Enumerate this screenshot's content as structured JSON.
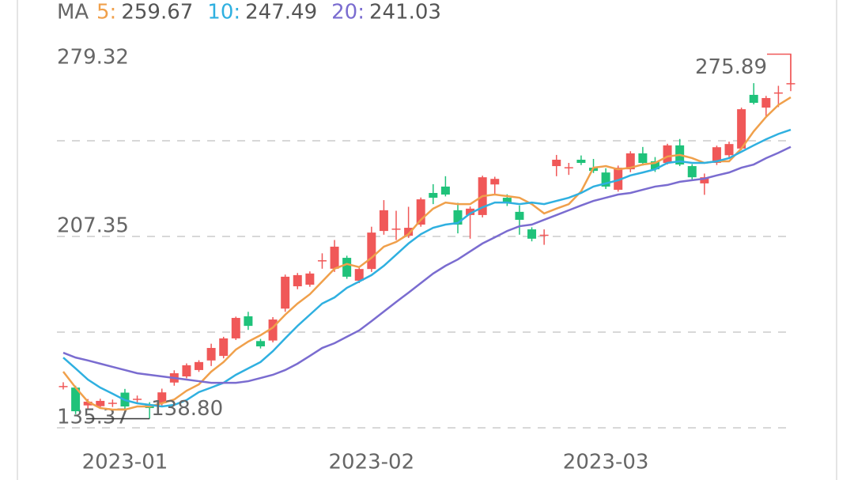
{
  "chart_data": {
    "type": "candlestick",
    "ma_label": "MA",
    "categories": [
      null,
      null,
      null,
      null,
      null,
      "2023-01",
      null,
      null,
      null,
      null,
      null,
      null,
      null,
      null,
      null,
      null,
      null,
      null,
      null,
      null,
      null,
      null,
      null,
      null,
      null,
      "2023-02",
      null,
      null,
      null,
      null,
      null,
      null,
      null,
      null,
      null,
      null,
      null,
      null,
      null,
      null,
      null,
      null,
      null,
      null,
      "2023-03",
      null,
      null,
      null,
      null,
      null,
      null,
      null,
      null,
      null,
      null,
      null,
      null,
      null,
      null,
      null
    ],
    "open": [
      150.8,
      150.5,
      143.8,
      143.5,
      144.5,
      148.6,
      146,
      144.2,
      144.6,
      152.4,
      154.7,
      157.1,
      160.7,
      162.4,
      169,
      177.3,
      168,
      168.2,
      180.2,
      188.6,
      189.2,
      198,
      195.2,
      199.3,
      190.7,
      195.1,
      209.4,
      210,
      207.6,
      211.8,
      223.7,
      226.1,
      217.2,
      215.4,
      215.4,
      226.9,
      221.9,
      216.6,
      210,
      207.8,
      233.8,
      233.2,
      236.2,
      233.2,
      231.4,
      224.9,
      232.6,
      238.6,
      235.6,
      235,
      241.6,
      233.8,
      227.3,
      235,
      237.9,
      240.4,
      260.6,
      255.8,
      261.2,
      264.8
    ],
    "high": [
      152.5,
      151.2,
      146.2,
      146.3,
      146,
      150,
      147.5,
      145,
      150.1,
      157,
      159.6,
      160.8,
      167,
      169.6,
      177.2,
      179,
      168.8,
      177,
      193,
      193.6,
      194.2,
      201,
      206,
      200.1,
      196,
      211,
      221,
      217,
      218.5,
      222,
      227,
      230,
      220,
      218.6,
      230.2,
      229.8,
      223.2,
      219,
      210.8,
      210,
      238,
      235,
      237.8,
      236.5,
      233,
      234,
      239.4,
      241,
      237.2,
      242.2,
      244,
      234.5,
      231,
      241.5,
      243,
      255.8,
      265,
      260.2,
      264,
      275.89
    ],
    "low": [
      149.8,
      140.5,
      142.6,
      142.8,
      143.2,
      142.1,
      144.6,
      138.8,
      143.2,
      151.2,
      154,
      156.4,
      158.6,
      161.5,
      168.4,
      172.2,
      165.2,
      167.5,
      179,
      187.5,
      188.4,
      195.2,
      194,
      191.4,
      189.8,
      194,
      208,
      206,
      206.8,
      211,
      219.5,
      222.4,
      208.5,
      206.5,
      214.5,
      223,
      218.8,
      208,
      205.5,
      204.2,
      230,
      230.5,
      234.2,
      231.2,
      225.2,
      224.2,
      231.5,
      234,
      231.6,
      234.4,
      233.8,
      228.8,
      223,
      234.2,
      237,
      239.8,
      257,
      252.6,
      256,
      262
    ],
    "close": [
      151.1,
      141.6,
      145.2,
      145.5,
      144.8,
      143.4,
      146.3,
      142.8,
      148.7,
      155.9,
      158.9,
      160.1,
      165.4,
      169,
      176.7,
      173.7,
      166,
      176.1,
      192.2,
      192.8,
      193.4,
      198.4,
      203.5,
      192.2,
      195.1,
      208.8,
      217.2,
      210.3,
      210.6,
      221.3,
      221.9,
      223.1,
      211.8,
      217.8,
      229.6,
      229,
      220.1,
      213.6,
      206.5,
      208,
      236.2,
      233.4,
      235,
      232,
      226.1,
      233.2,
      238.6,
      235,
      232.6,
      241.6,
      234.4,
      229.6,
      229.6,
      240.9,
      242.1,
      255.2,
      257.6,
      259.4,
      261.5,
      265
    ],
    "up_color": "#f05858",
    "down_color": "#1fc27a",
    "series": [
      {
        "name": "5:",
        "color": "#f0a04b",
        "values": [
          156.5,
          150.5,
          145.2,
          142.8,
          142.2,
          142.2,
          143.4,
          143.4,
          144.6,
          146,
          149.3,
          151.7,
          156.5,
          160.1,
          164.8,
          167.8,
          170.2,
          173.1,
          177.9,
          182.1,
          185.6,
          190.4,
          195.2,
          197,
          195.8,
          199.3,
          203.5,
          205.3,
          208.2,
          213.6,
          217.8,
          220.1,
          219.5,
          219.5,
          222.5,
          223.1,
          222.5,
          221.9,
          219.5,
          216,
          217.8,
          219.5,
          224.3,
          233.2,
          233.8,
          232.6,
          233.2,
          234.4,
          235,
          237.4,
          238,
          236.8,
          235,
          235.6,
          235.6,
          240.4,
          246.9,
          252.3,
          256.8,
          259.67
        ]
      },
      {
        "name": "10:",
        "color": "#2fb0e0",
        "values": [
          161.8,
          157.7,
          153.5,
          150.5,
          148.2,
          145.8,
          144.6,
          144,
          143.4,
          144,
          145.8,
          148.8,
          150.5,
          152.3,
          155.3,
          157.7,
          160.1,
          164.2,
          169,
          173.7,
          177.9,
          182.1,
          184.4,
          188,
          190.4,
          192.8,
          196.3,
          200.5,
          204.7,
          208.2,
          210.6,
          211.8,
          212.4,
          216,
          218.3,
          220.1,
          220.1,
          219.5,
          220.1,
          219.5,
          220.7,
          221.9,
          223.7,
          226.1,
          227.3,
          228.5,
          230.3,
          231.4,
          232.6,
          235,
          235.6,
          235,
          235,
          235.6,
          236.8,
          239.2,
          241.6,
          243.9,
          245.9,
          247.49
        ]
      },
      {
        "name": "20:",
        "color": "#7a6cd0",
        "values": [
          163.6,
          161.8,
          160.7,
          159.5,
          158.3,
          157.1,
          155.9,
          155.3,
          154.7,
          154.1,
          153.5,
          152.9,
          152.3,
          152.3,
          152.3,
          152.9,
          154.1,
          155.3,
          157.1,
          159.5,
          162.4,
          165.4,
          167.2,
          169.6,
          172,
          175.5,
          179.1,
          182.7,
          186.2,
          189.8,
          193.4,
          196.3,
          198.7,
          201.7,
          204.7,
          207,
          209.4,
          211.2,
          211.8,
          213.6,
          215.4,
          217.2,
          219,
          220.7,
          221.9,
          223.1,
          223.7,
          224.9,
          226.1,
          226.7,
          227.9,
          228.5,
          229.1,
          230.3,
          231.4,
          233.2,
          234.4,
          236.8,
          238.8,
          241.03
        ]
      }
    ],
    "max_label": "275.89",
    "min_label": "138.80",
    "ylim": [
      135.37,
      279.32
    ],
    "yticks": [
      279.32,
      207.35,
      135.37
    ],
    "grid": true
  }
}
